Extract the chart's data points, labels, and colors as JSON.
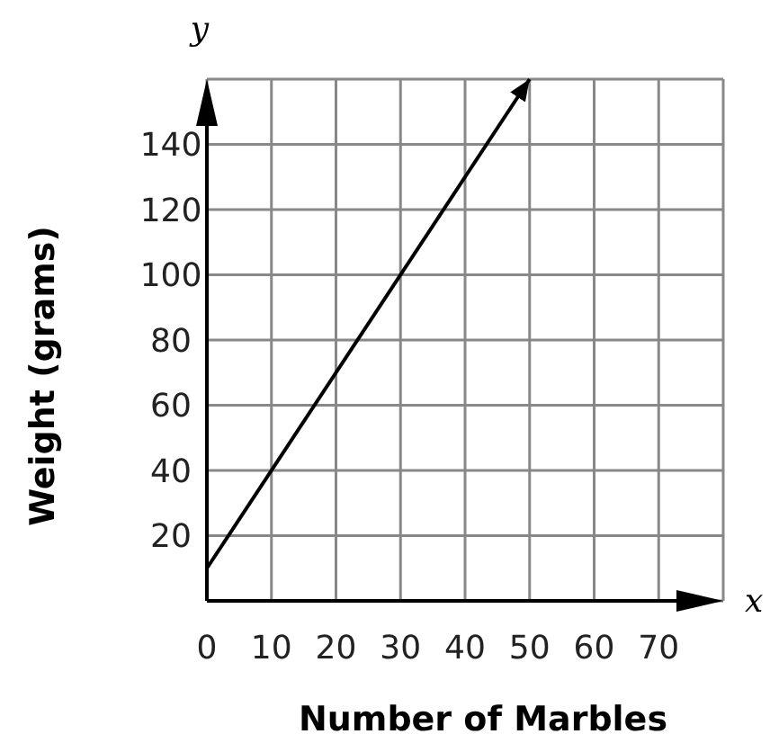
{
  "chart_data": {
    "type": "line",
    "xlabel": "Number of Marbles",
    "ylabel": "Weight (grams)",
    "annotations": [
      "x",
      "y"
    ],
    "xlim": [
      0,
      80
    ],
    "ylim": [
      0,
      160
    ],
    "xticks": [
      0,
      10,
      20,
      30,
      40,
      50,
      60,
      70
    ],
    "yticks": [
      20,
      40,
      60,
      80,
      100,
      120,
      140
    ],
    "grid": true,
    "marker": "none",
    "line_style": "solid",
    "series": [
      {
        "color": "#000000",
        "x": [
          0,
          50
        ],
        "values": [
          10,
          160
        ]
      }
    ]
  }
}
